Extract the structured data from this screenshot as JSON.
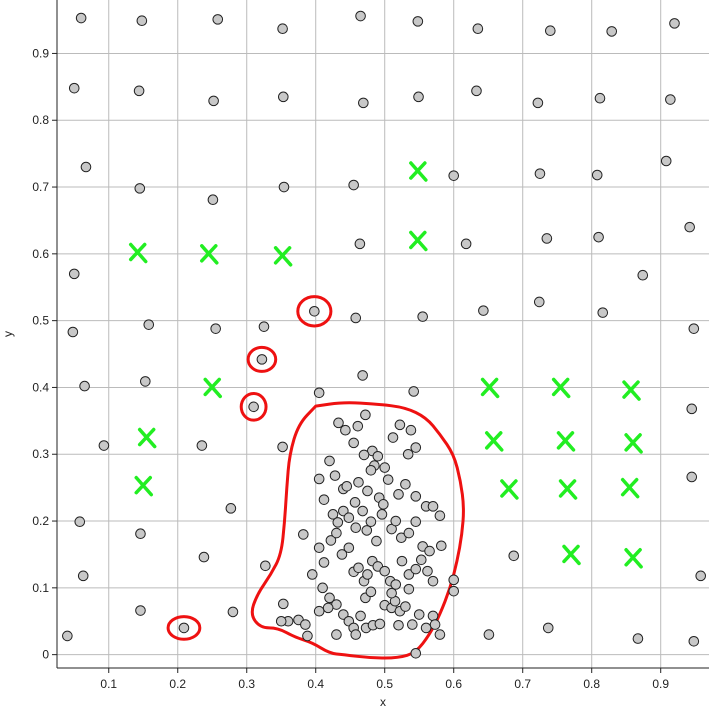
{
  "chart_data": {
    "type": "scatter",
    "xlabel": "x",
    "ylabel": "y",
    "xlim": [
      0.025,
      0.97
    ],
    "ylim": [
      -0.02,
      0.98
    ],
    "grid": true,
    "xticks": [
      "0.1",
      "0.2",
      "0.3",
      "0.4",
      "0.5",
      "0.6",
      "0.7",
      "0.8",
      "0.9"
    ],
    "yticks": [
      "0",
      "0.1",
      "0.2",
      "0.3",
      "0.4",
      "0.5",
      "0.6",
      "0.7",
      "0.8",
      "0.9"
    ],
    "xtick_values": [
      0.1,
      0.2,
      0.3,
      0.4,
      0.5,
      0.6,
      0.7,
      0.8,
      0.9
    ],
    "ytick_values": [
      0,
      0.1,
      0.2,
      0.3,
      0.4,
      0.5,
      0.6,
      0.7,
      0.8,
      0.9
    ],
    "colors": {
      "points_fill": "#c8c8c8",
      "points_stroke": "#222222",
      "x_marks": "#22ee22",
      "circles": "#ee1111",
      "grid": "#bbbbbb"
    },
    "points": [
      [
        0.06,
        0.953
      ],
      [
        0.148,
        0.949
      ],
      [
        0.258,
        0.951
      ],
      [
        0.352,
        0.937
      ],
      [
        0.465,
        0.956
      ],
      [
        0.548,
        0.948
      ],
      [
        0.635,
        0.937
      ],
      [
        0.74,
        0.934
      ],
      [
        0.829,
        0.933
      ],
      [
        0.92,
        0.945
      ],
      [
        0.05,
        0.848
      ],
      [
        0.144,
        0.844
      ],
      [
        0.252,
        0.829
      ],
      [
        0.353,
        0.835
      ],
      [
        0.469,
        0.826
      ],
      [
        0.549,
        0.835
      ],
      [
        0.633,
        0.844
      ],
      [
        0.722,
        0.826
      ],
      [
        0.812,
        0.833
      ],
      [
        0.914,
        0.831
      ],
      [
        0.067,
        0.73
      ],
      [
        0.145,
        0.698
      ],
      [
        0.251,
        0.681
      ],
      [
        0.354,
        0.7
      ],
      [
        0.455,
        0.703
      ],
      [
        0.6,
        0.717
      ],
      [
        0.725,
        0.72
      ],
      [
        0.808,
        0.718
      ],
      [
        0.908,
        0.739
      ],
      [
        0.464,
        0.615
      ],
      [
        0.618,
        0.615
      ],
      [
        0.735,
        0.623
      ],
      [
        0.81,
        0.625
      ],
      [
        0.942,
        0.64
      ],
      [
        0.05,
        0.57
      ],
      [
        0.874,
        0.568
      ],
      [
        0.048,
        0.483
      ],
      [
        0.158,
        0.494
      ],
      [
        0.255,
        0.488
      ],
      [
        0.325,
        0.491
      ],
      [
        0.458,
        0.504
      ],
      [
        0.555,
        0.506
      ],
      [
        0.643,
        0.515
      ],
      [
        0.724,
        0.528
      ],
      [
        0.816,
        0.512
      ],
      [
        0.948,
        0.488
      ],
      [
        0.065,
        0.402
      ],
      [
        0.153,
        0.409
      ],
      [
        0.468,
        0.418
      ],
      [
        0.405,
        0.392
      ],
      [
        0.542,
        0.394
      ],
      [
        0.093,
        0.313
      ],
      [
        0.235,
        0.313
      ],
      [
        0.352,
        0.311
      ],
      [
        0.945,
        0.368
      ],
      [
        0.058,
        0.199
      ],
      [
        0.146,
        0.181
      ],
      [
        0.277,
        0.219
      ],
      [
        0.945,
        0.266
      ],
      [
        0.063,
        0.118
      ],
      [
        0.238,
        0.146
      ],
      [
        0.327,
        0.133
      ],
      [
        0.687,
        0.148
      ],
      [
        0.958,
        0.118
      ],
      [
        0.146,
        0.066
      ],
      [
        0.28,
        0.064
      ],
      [
        0.651,
        0.03
      ],
      [
        0.737,
        0.04
      ],
      [
        0.867,
        0.024
      ],
      [
        0.948,
        0.02
      ],
      [
        0.04,
        0.028
      ],
      [
        0.545,
        0.002
      ],
      [
        0.398,
        0.514
      ],
      [
        0.322,
        0.442
      ],
      [
        0.31,
        0.371
      ],
      [
        0.209,
        0.04
      ],
      [
        0.433,
        0.347
      ],
      [
        0.443,
        0.336
      ],
      [
        0.461,
        0.342
      ],
      [
        0.472,
        0.359
      ],
      [
        0.482,
        0.305
      ],
      [
        0.49,
        0.297
      ],
      [
        0.485,
        0.283
      ],
      [
        0.5,
        0.28
      ],
      [
        0.512,
        0.325
      ],
      [
        0.522,
        0.344
      ],
      [
        0.538,
        0.336
      ],
      [
        0.534,
        0.3
      ],
      [
        0.545,
        0.31
      ],
      [
        0.455,
        0.317
      ],
      [
        0.47,
        0.299
      ],
      [
        0.405,
        0.263
      ],
      [
        0.42,
        0.29
      ],
      [
        0.428,
        0.268
      ],
      [
        0.44,
        0.248
      ],
      [
        0.445,
        0.252
      ],
      [
        0.457,
        0.228
      ],
      [
        0.462,
        0.258
      ],
      [
        0.475,
        0.245
      ],
      [
        0.48,
        0.276
      ],
      [
        0.492,
        0.235
      ],
      [
        0.498,
        0.225
      ],
      [
        0.505,
        0.262
      ],
      [
        0.52,
        0.24
      ],
      [
        0.53,
        0.255
      ],
      [
        0.545,
        0.237
      ],
      [
        0.56,
        0.222
      ],
      [
        0.58,
        0.208
      ],
      [
        0.57,
        0.222
      ],
      [
        0.412,
        0.232
      ],
      [
        0.425,
        0.21
      ],
      [
        0.432,
        0.198
      ],
      [
        0.44,
        0.215
      ],
      [
        0.448,
        0.205
      ],
      [
        0.458,
        0.19
      ],
      [
        0.468,
        0.215
      ],
      [
        0.474,
        0.186
      ],
      [
        0.48,
        0.199
      ],
      [
        0.488,
        0.17
      ],
      [
        0.496,
        0.21
      ],
      [
        0.51,
        0.188
      ],
      [
        0.516,
        0.2
      ],
      [
        0.524,
        0.175
      ],
      [
        0.535,
        0.182
      ],
      [
        0.545,
        0.199
      ],
      [
        0.555,
        0.162
      ],
      [
        0.565,
        0.155
      ],
      [
        0.582,
        0.163
      ],
      [
        0.382,
        0.18
      ],
      [
        0.405,
        0.16
      ],
      [
        0.412,
        0.138
      ],
      [
        0.422,
        0.171
      ],
      [
        0.43,
        0.182
      ],
      [
        0.438,
        0.15
      ],
      [
        0.448,
        0.16
      ],
      [
        0.455,
        0.124
      ],
      [
        0.462,
        0.13
      ],
      [
        0.47,
        0.11
      ],
      [
        0.475,
        0.12
      ],
      [
        0.482,
        0.14
      ],
      [
        0.49,
        0.132
      ],
      [
        0.5,
        0.125
      ],
      [
        0.508,
        0.11
      ],
      [
        0.516,
        0.105
      ],
      [
        0.525,
        0.14
      ],
      [
        0.535,
        0.12
      ],
      [
        0.545,
        0.128
      ],
      [
        0.553,
        0.142
      ],
      [
        0.562,
        0.125
      ],
      [
        0.57,
        0.11
      ],
      [
        0.6,
        0.112
      ],
      [
        0.6,
        0.095
      ],
      [
        0.41,
        0.1
      ],
      [
        0.395,
        0.12
      ],
      [
        0.42,
        0.085
      ],
      [
        0.43,
        0.075
      ],
      [
        0.44,
        0.06
      ],
      [
        0.448,
        0.05
      ],
      [
        0.455,
        0.04
      ],
      [
        0.465,
        0.058
      ],
      [
        0.473,
        0.04
      ],
      [
        0.483,
        0.044
      ],
      [
        0.493,
        0.046
      ],
      [
        0.5,
        0.074
      ],
      [
        0.51,
        0.07
      ],
      [
        0.515,
        0.08
      ],
      [
        0.522,
        0.065
      ],
      [
        0.53,
        0.072
      ],
      [
        0.54,
        0.045
      ],
      [
        0.55,
        0.06
      ],
      [
        0.56,
        0.04
      ],
      [
        0.57,
        0.058
      ],
      [
        0.58,
        0.03
      ],
      [
        0.573,
        0.045
      ],
      [
        0.51,
        0.092
      ],
      [
        0.535,
        0.098
      ],
      [
        0.353,
        0.076
      ],
      [
        0.36,
        0.05
      ],
      [
        0.375,
        0.052
      ],
      [
        0.385,
        0.045
      ],
      [
        0.388,
        0.028
      ],
      [
        0.405,
        0.065
      ],
      [
        0.418,
        0.07
      ],
      [
        0.43,
        0.03
      ],
      [
        0.458,
        0.03
      ],
      [
        0.472,
        0.085
      ],
      [
        0.48,
        0.094
      ],
      [
        0.52,
        0.044
      ],
      [
        0.35,
        0.05
      ]
    ],
    "x_marks": [
      [
        0.548,
        0.724
      ],
      [
        0.142,
        0.602
      ],
      [
        0.245,
        0.6
      ],
      [
        0.352,
        0.597
      ],
      [
        0.548,
        0.62
      ],
      [
        0.25,
        0.4
      ],
      [
        0.652,
        0.4
      ],
      [
        0.755,
        0.4
      ],
      [
        0.857,
        0.396
      ],
      [
        0.155,
        0.325
      ],
      [
        0.658,
        0.32
      ],
      [
        0.762,
        0.32
      ],
      [
        0.86,
        0.317
      ],
      [
        0.15,
        0.253
      ],
      [
        0.68,
        0.248
      ],
      [
        0.765,
        0.248
      ],
      [
        0.855,
        0.25
      ],
      [
        0.77,
        0.15
      ],
      [
        0.86,
        0.145
      ]
    ],
    "red_circles": [
      [
        0.398,
        0.514,
        0.024,
        0.022
      ],
      [
        0.322,
        0.442,
        0.02,
        0.018
      ],
      [
        0.31,
        0.371,
        0.018,
        0.02
      ],
      [
        0.209,
        0.04,
        0.023,
        0.017
      ]
    ],
    "red_blob": [
      [
        0.4,
        0.372
      ],
      [
        0.44,
        0.378
      ],
      [
        0.49,
        0.375
      ],
      [
        0.53,
        0.37
      ],
      [
        0.56,
        0.355
      ],
      [
        0.58,
        0.33
      ],
      [
        0.6,
        0.3
      ],
      [
        0.61,
        0.26
      ],
      [
        0.615,
        0.22
      ],
      [
        0.612,
        0.18
      ],
      [
        0.605,
        0.14
      ],
      [
        0.595,
        0.1
      ],
      [
        0.58,
        0.06
      ],
      [
        0.565,
        0.03
      ],
      [
        0.545,
        0.003
      ],
      [
        0.52,
        -0.005
      ],
      [
        0.48,
        -0.005
      ],
      [
        0.44,
        0.0
      ],
      [
        0.42,
        0.002
      ],
      [
        0.395,
        0.018
      ],
      [
        0.37,
        0.026
      ],
      [
        0.345,
        0.04
      ],
      [
        0.32,
        0.04
      ],
      [
        0.305,
        0.06
      ],
      [
        0.315,
        0.09
      ],
      [
        0.335,
        0.12
      ],
      [
        0.35,
        0.15
      ],
      [
        0.355,
        0.2
      ],
      [
        0.358,
        0.25
      ],
      [
        0.362,
        0.3
      ],
      [
        0.375,
        0.345
      ],
      [
        0.4,
        0.372
      ]
    ]
  }
}
